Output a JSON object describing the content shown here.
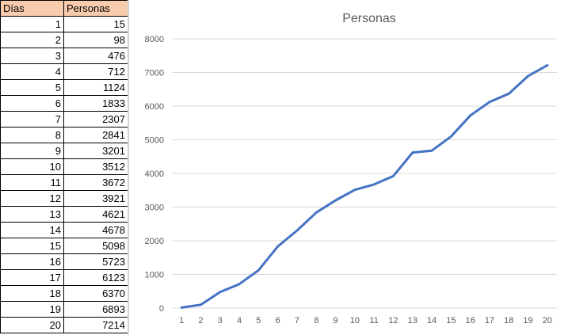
{
  "table": {
    "headers": [
      "Días",
      "Personas"
    ],
    "rows": [
      [
        1,
        15
      ],
      [
        2,
        98
      ],
      [
        3,
        476
      ],
      [
        4,
        712
      ],
      [
        5,
        1124
      ],
      [
        6,
        1833
      ],
      [
        7,
        2307
      ],
      [
        8,
        2841
      ],
      [
        9,
        3201
      ],
      [
        10,
        3512
      ],
      [
        11,
        3672
      ],
      [
        12,
        3921
      ],
      [
        13,
        4621
      ],
      [
        14,
        4678
      ],
      [
        15,
        5098
      ],
      [
        16,
        5723
      ],
      [
        17,
        6123
      ],
      [
        18,
        6370
      ],
      [
        19,
        6893
      ],
      [
        20,
        7214
      ]
    ]
  },
  "colors": {
    "header_fill": "#f8cbad",
    "line": "#4472c4",
    "grid": "#d9d9d9",
    "axis_text": "#595959"
  },
  "chart_data": {
    "type": "line",
    "title": "Personas",
    "x": [
      1,
      2,
      3,
      4,
      5,
      6,
      7,
      8,
      9,
      10,
      11,
      12,
      13,
      14,
      15,
      16,
      17,
      18,
      19,
      20
    ],
    "series": [
      {
        "name": "Personas",
        "values": [
          15,
          98,
          476,
          712,
          1124,
          1833,
          2307,
          2841,
          3201,
          3512,
          3672,
          3921,
          4621,
          4678,
          5098,
          5723,
          6123,
          6370,
          6893,
          7214
        ]
      }
    ],
    "ylim": [
      0,
      8000
    ],
    "yticks": [
      0,
      1000,
      2000,
      3000,
      4000,
      5000,
      6000,
      7000,
      8000
    ],
    "grid": true,
    "legend": "none"
  }
}
